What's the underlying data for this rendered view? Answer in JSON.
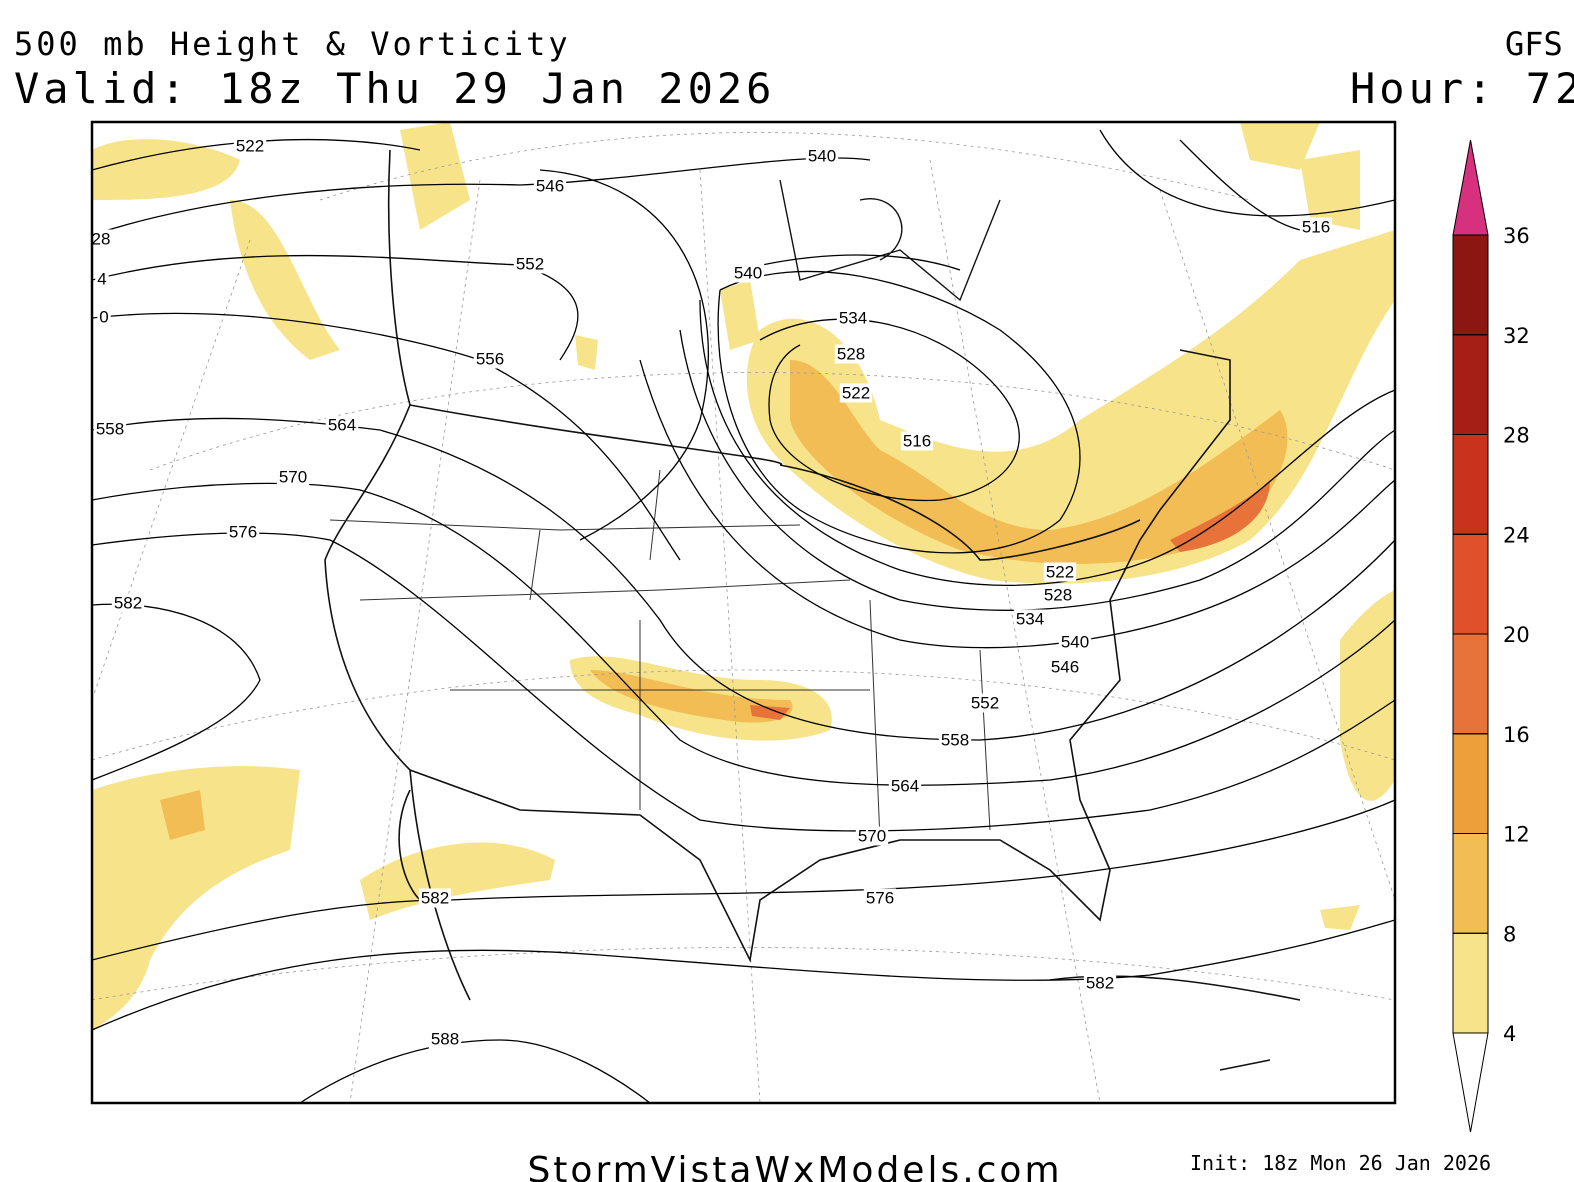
{
  "header": {
    "title": "500 mb Height & Vorticity",
    "valid": "Valid: 18z Thu 29 Jan 2026",
    "model": "GFS",
    "hour": "Hour: 72"
  },
  "contour_labels": [
    "522",
    "546",
    "540",
    "552",
    "540",
    "534",
    "528",
    "522",
    "556",
    "516",
    "564",
    "570",
    "576",
    "582",
    "28",
    "4",
    "0",
    "558",
    "516",
    "522",
    "528",
    "534",
    "540",
    "546",
    "552",
    "558",
    "564",
    "570",
    "576",
    "582",
    "582",
    "588"
  ],
  "colorbar": {
    "ticks": [
      4,
      8,
      12,
      16,
      20,
      24,
      28,
      32,
      36
    ],
    "colors": [
      "#f7e48a",
      "#f3bd55",
      "#eda03a",
      "#e8733a",
      "#e0502a",
      "#c9331e",
      "#a51f17",
      "#8a1712"
    ],
    "top_color": "#d6307f"
  },
  "footer": {
    "site": "StormVistaWxModels.com",
    "init": "Init: 18z Mon 26 Jan 2026"
  }
}
